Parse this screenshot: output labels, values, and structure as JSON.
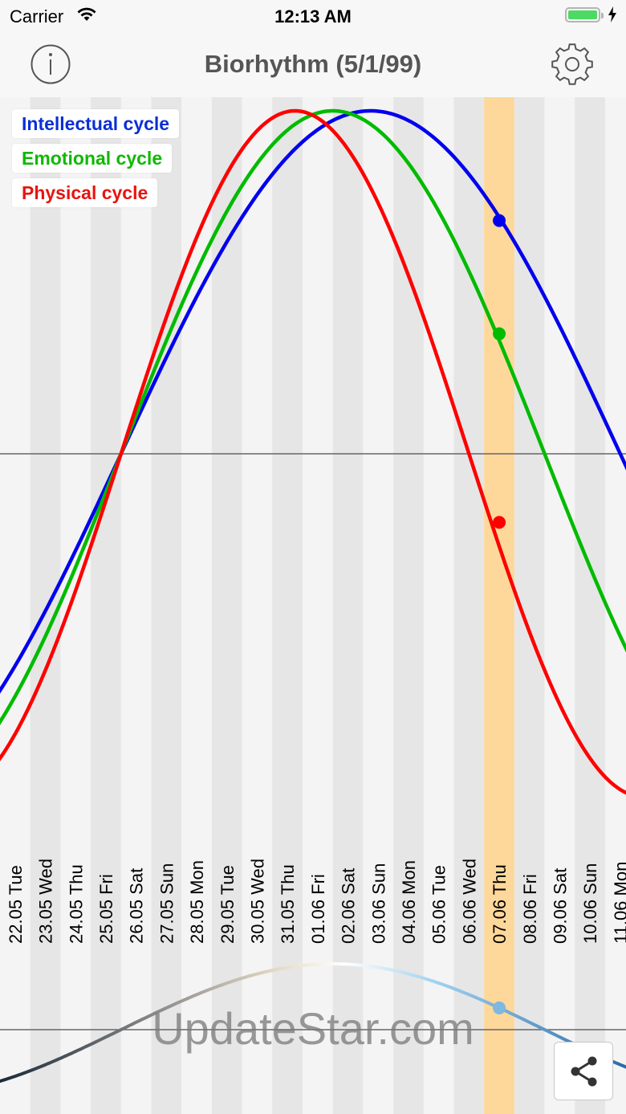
{
  "status_bar": {
    "carrier": "Carrier",
    "time": "12:13 AM"
  },
  "header": {
    "title": "Biorhythm (5/1/99)",
    "info_icon": "info-circle-icon",
    "settings_icon": "gear-icon"
  },
  "legend": [
    {
      "label": "Intellectual cycle",
      "color": "#0a2fd6"
    },
    {
      "label": "Emotional cycle",
      "color": "#10b800"
    },
    {
      "label": "Physical cycle",
      "color": "#e8140f"
    }
  ],
  "chart_data": {
    "type": "line",
    "x": [
      "22.05 Tue",
      "23.05 Wed",
      "24.05 Thu",
      "25.05 Fri",
      "26.05 Sat",
      "27.05 Sun",
      "28.05 Mon",
      "29.05 Tue",
      "30.05 Wed",
      "31.05 Thu",
      "01.06 Fri",
      "02.06 Sat",
      "03.06 Sun",
      "04.06 Mon",
      "05.06 Tue",
      "06.06 Wed",
      "07.06 Thu",
      "08.06 Fri",
      "09.06 Sat",
      "10.06 Sun",
      "11.06 Mon"
    ],
    "highlight": "07.06 Thu",
    "ylim": [
      -1,
      1
    ],
    "series": [
      {
        "name": "Intellectual cycle",
        "color": "#0000ee",
        "period": 33,
        "peak_index": 11.75,
        "highlight_value": 0.68
      },
      {
        "name": "Emotional cycle",
        "color": "#00bb00",
        "period": 28,
        "peak_index": 10.5,
        "highlight_value": 0.35
      },
      {
        "name": "Physical cycle",
        "color": "#ff0000",
        "period": 23,
        "peak_index": 9.25,
        "highlight_value": -0.2
      }
    ]
  },
  "watermark": "UpdateStar.com",
  "share_button": {
    "icon": "share-icon"
  }
}
